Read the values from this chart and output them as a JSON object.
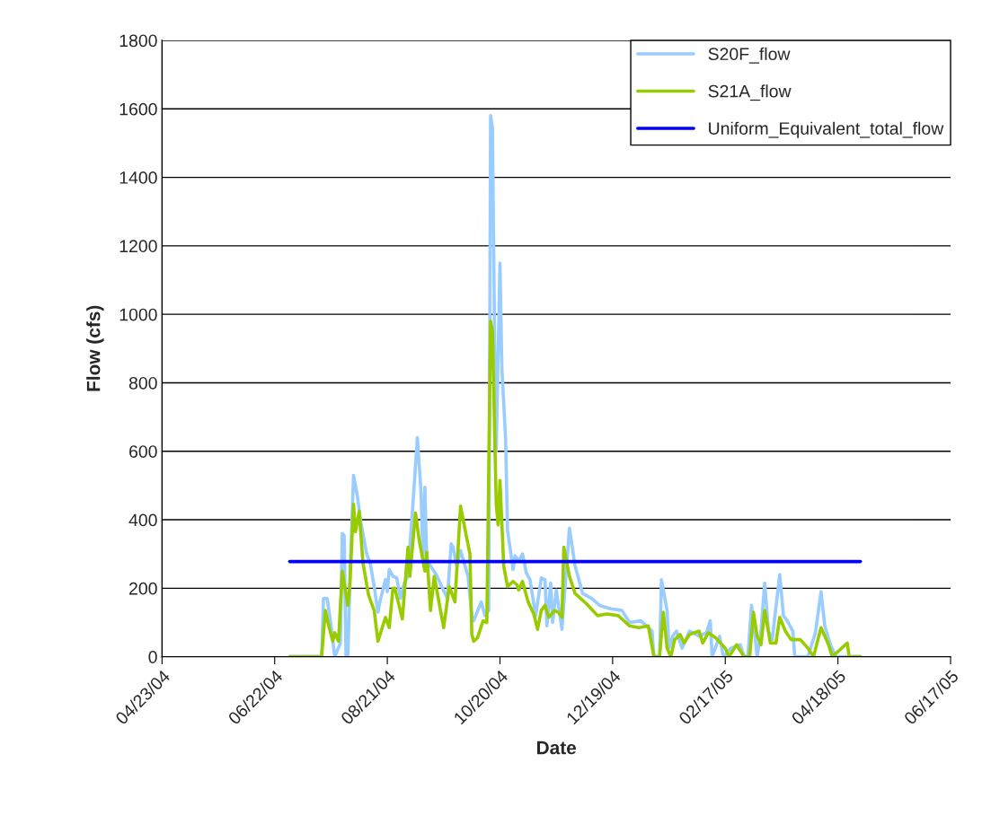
{
  "chart_data": {
    "type": "line",
    "xlabel": "Date",
    "ylabel": "Flow (cfs)",
    "xlim": [
      "2004-04-23",
      "2005-06-17"
    ],
    "xticks": [
      {
        "value": "2004-04-23",
        "label": "04/23/04"
      },
      {
        "value": "2004-06-22",
        "label": "06/22/04"
      },
      {
        "value": "2004-08-21",
        "label": "08/21/04"
      },
      {
        "value": "2004-10-20",
        "label": "10/20/04"
      },
      {
        "value": "2004-12-19",
        "label": "12/19/04"
      },
      {
        "value": "2005-02-17",
        "label": "02/17/05"
      },
      {
        "value": "2005-04-18",
        "label": "04/18/05"
      },
      {
        "value": "2005-06-17",
        "label": "06/17/05"
      }
    ],
    "ylim": [
      0,
      1800
    ],
    "yticks": [
      0,
      200,
      400,
      600,
      800,
      1000,
      1200,
      1400,
      1600,
      1800
    ],
    "grid": "y",
    "legend": "top right",
    "series": [
      {
        "name": "S20F_flow",
        "color": "#99ccff",
        "x": [
          "2004-06-30",
          "2004-07-17",
          "2004-07-18",
          "2004-07-20",
          "2004-07-22",
          "2004-07-24",
          "2004-07-27",
          "2004-07-28",
          "2004-07-29",
          "2004-07-30",
          "2004-07-31",
          "2004-08-01",
          "2004-08-03",
          "2004-08-05",
          "2004-08-07",
          "2004-08-10",
          "2004-08-12",
          "2004-08-14",
          "2004-08-16",
          "2004-08-17",
          "2004-08-20",
          "2004-08-21",
          "2004-08-22",
          "2004-08-24",
          "2004-08-26",
          "2004-08-28",
          "2004-08-30",
          "2004-09-01",
          "2004-09-02",
          "2004-09-04",
          "2004-09-06",
          "2004-09-08",
          "2004-09-09",
          "2004-09-10",
          "2004-09-11",
          "2004-09-13",
          "2004-09-16",
          "2004-09-19",
          "2004-09-22",
          "2004-09-24",
          "2004-09-25",
          "2004-09-27",
          "2004-09-29",
          "2004-10-03",
          "2004-10-05",
          "2004-10-06",
          "2004-10-10",
          "2004-10-12",
          "2004-10-14",
          "2004-10-15",
          "2004-10-16",
          "2004-10-17",
          "2004-10-18",
          "2004-10-20",
          "2004-10-21",
          "2004-10-23",
          "2004-10-24",
          "2004-10-27",
          "2004-10-28",
          "2004-10-30",
          "2004-11-01",
          "2004-11-03",
          "2004-11-05",
          "2004-11-08",
          "2004-11-11",
          "2004-11-13",
          "2004-11-14",
          "2004-11-16",
          "2004-11-17",
          "2004-11-19",
          "2004-11-22",
          "2004-11-26",
          "2004-11-29",
          "2004-12-03",
          "2004-12-08",
          "2004-12-12",
          "2004-12-18",
          "2004-12-24",
          "2004-12-28",
          "2005-01-03",
          "2005-01-09",
          "2005-01-10",
          "2005-01-13",
          "2005-01-14",
          "2005-01-17",
          "2005-01-18",
          "2005-01-20",
          "2005-01-22",
          "2005-01-25",
          "2005-01-29",
          "2005-02-03",
          "2005-02-07",
          "2005-02-09",
          "2005-02-10",
          "2005-02-14",
          "2005-02-16",
          "2005-02-20",
          "2005-02-25",
          "2005-02-27",
          "2005-03-01",
          "2005-03-03",
          "2005-03-06",
          "2005-03-08",
          "2005-03-10",
          "2005-03-12",
          "2005-03-14",
          "2005-03-18",
          "2005-03-20",
          "2005-03-22",
          "2005-03-25",
          "2005-03-26",
          "2005-03-29",
          "2005-04-02",
          "2005-04-06",
          "2005-04-09",
          "2005-04-11",
          "2005-04-14",
          "2005-04-17",
          "2005-04-23",
          "2005-04-30"
        ],
        "values": [
          0,
          0,
          170,
          170,
          90,
          0,
          40,
          360,
          355,
          0,
          0,
          215,
          530,
          470,
          390,
          300,
          270,
          205,
          130,
          160,
          225,
          190,
          255,
          235,
          230,
          170,
          215,
          235,
          320,
          475,
          640,
          475,
          285,
          495,
          285,
          265,
          240,
          205,
          170,
          330,
          320,
          265,
          310,
          235,
          120,
          105,
          160,
          120,
          135,
          1580,
          1545,
          1000,
          600,
          1150,
          845,
          635,
          370,
          255,
          295,
          280,
          300,
          245,
          225,
          120,
          230,
          225,
          90,
          215,
          100,
          195,
          80,
          375,
          265,
          185,
          170,
          150,
          140,
          135,
          100,
          105,
          75,
          0,
          0,
          225,
          135,
          25,
          60,
          75,
          25,
          75,
          60,
          70,
          105,
          0,
          60,
          0,
          25,
          35,
          0,
          0,
          150,
          0,
          75,
          215,
          75,
          50,
          240,
          120,
          105,
          75,
          0,
          0,
          0,
          70,
          190,
          90,
          35,
          0,
          0,
          0
        ]
      },
      {
        "name": "S21A_flow",
        "color": "#99cc00",
        "x": [
          "2004-06-30",
          "2004-07-17",
          "2004-07-19",
          "2004-07-21",
          "2004-07-23",
          "2004-07-24",
          "2004-07-26",
          "2004-07-28",
          "2004-07-31",
          "2004-08-01",
          "2004-08-03",
          "2004-08-04",
          "2004-08-06",
          "2004-08-08",
          "2004-08-11",
          "2004-08-14",
          "2004-08-16",
          "2004-08-18",
          "2004-08-20",
          "2004-08-22",
          "2004-08-24",
          "2004-08-25",
          "2004-08-29",
          "2004-09-01",
          "2004-09-02",
          "2004-09-05",
          "2004-09-07",
          "2004-09-10",
          "2004-09-11",
          "2004-09-13",
          "2004-09-15",
          "2004-09-18",
          "2004-09-20",
          "2004-09-23",
          "2004-09-26",
          "2004-09-29",
          "2004-10-02",
          "2004-10-04",
          "2004-10-05",
          "2004-10-06",
          "2004-10-08",
          "2004-10-11",
          "2004-10-13",
          "2004-10-15",
          "2004-10-16",
          "2004-10-18",
          "2004-10-19",
          "2004-10-20",
          "2004-10-22",
          "2004-10-24",
          "2004-10-27",
          "2004-10-29",
          "2004-10-30",
          "2004-11-01",
          "2004-11-04",
          "2004-11-07",
          "2004-11-09",
          "2004-11-11",
          "2004-11-13",
          "2004-11-15",
          "2004-11-18",
          "2004-11-20",
          "2004-11-22",
          "2004-11-23",
          "2004-11-26",
          "2004-11-29",
          "2004-12-05",
          "2004-12-11",
          "2004-12-16",
          "2004-12-22",
          "2004-12-26",
          "2004-12-28",
          "2005-01-02",
          "2005-01-07",
          "2005-01-10",
          "2005-01-13",
          "2005-01-15",
          "2005-01-17",
          "2005-01-19",
          "2005-01-21",
          "2005-01-24",
          "2005-01-26",
          "2005-01-29",
          "2005-02-03",
          "2005-02-05",
          "2005-02-08",
          "2005-02-12",
          "2005-02-17",
          "2005-02-19",
          "2005-02-23",
          "2005-02-27",
          "2005-03-02",
          "2005-03-04",
          "2005-03-06",
          "2005-03-08",
          "2005-03-10",
          "2005-03-13",
          "2005-03-16",
          "2005-03-18",
          "2005-03-21",
          "2005-03-24",
          "2005-03-29",
          "2005-04-02",
          "2005-04-05",
          "2005-04-09",
          "2005-04-13",
          "2005-04-15",
          "2005-04-23",
          "2005-04-24",
          "2005-04-30"
        ],
        "values": [
          0,
          0,
          135,
          85,
          45,
          70,
          45,
          250,
          150,
          205,
          445,
          365,
          425,
          275,
          180,
          135,
          45,
          80,
          115,
          85,
          200,
          200,
          110,
          320,
          235,
          420,
          340,
          250,
          305,
          135,
          235,
          145,
          85,
          205,
          160,
          440,
          355,
          300,
          65,
          45,
          55,
          105,
          100,
          980,
          950,
          445,
          385,
          515,
          265,
          205,
          220,
          210,
          195,
          220,
          160,
          125,
          80,
          135,
          150,
          115,
          135,
          130,
          115,
          320,
          235,
          185,
          155,
          120,
          125,
          120,
          100,
          90,
          85,
          90,
          0,
          0,
          130,
          25,
          0,
          50,
          65,
          40,
          65,
          75,
          40,
          70,
          55,
          25,
          0,
          35,
          0,
          0,
          130,
          60,
          35,
          135,
          40,
          40,
          115,
          75,
          50,
          50,
          25,
          0,
          85,
          35,
          0,
          40,
          0,
          0
        ]
      },
      {
        "name": "Uniform_Equivalent_total_flow",
        "color": "#0000ff",
        "x": [
          "2004-06-30",
          "2005-04-30"
        ],
        "values": [
          278,
          278
        ]
      }
    ]
  }
}
